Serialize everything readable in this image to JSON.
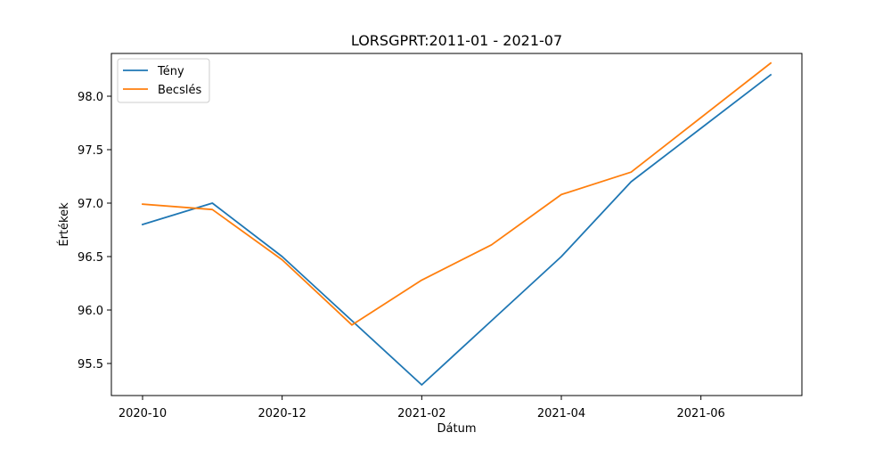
{
  "chart_data": {
    "type": "line",
    "title": "LORSGPRT:2011-01 - 2021-07",
    "xlabel": "Dátum",
    "ylabel": "Értékek",
    "x": [
      "2020-10",
      "2020-11",
      "2020-12",
      "2021-01",
      "2021-02",
      "2021-03",
      "2021-04",
      "2021-05",
      "2021-06",
      "2021-07"
    ],
    "x_ticks": [
      "2020-10",
      "2020-12",
      "2021-02",
      "2021-04",
      "2021-06"
    ],
    "y_ticks": [
      "95.5",
      "96.0",
      "96.5",
      "97.0",
      "97.5",
      "98.0"
    ],
    "ylim": [
      95.2,
      98.4
    ],
    "grid": false,
    "legend_position": "upper-left",
    "series": [
      {
        "name": "Tény",
        "color": "#1f77b4",
        "values": [
          96.8,
          97.0,
          96.5,
          95.9,
          95.3,
          95.9,
          96.5,
          97.2,
          97.7,
          98.2
        ]
      },
      {
        "name": "Becslés",
        "color": "#ff7f0e",
        "values": [
          96.99,
          96.94,
          96.47,
          95.86,
          96.28,
          96.61,
          97.08,
          97.29,
          97.8,
          98.31
        ]
      }
    ]
  }
}
